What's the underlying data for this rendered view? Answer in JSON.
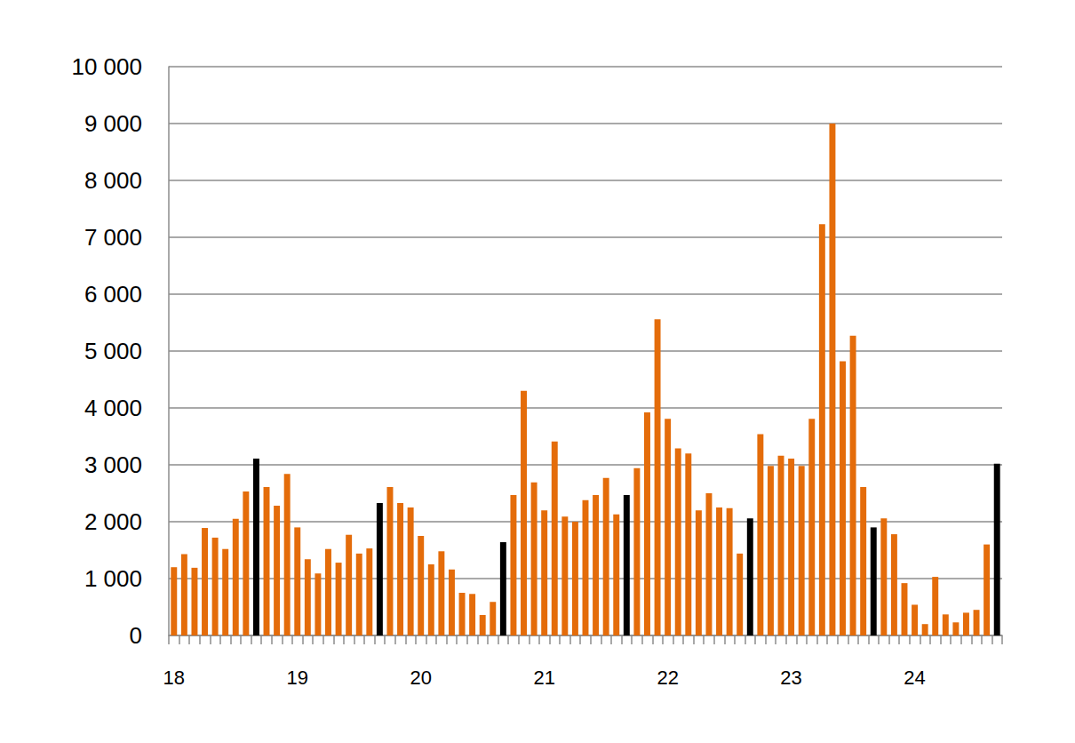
{
  "chart_data": {
    "type": "bar",
    "categories": [
      "18",
      null,
      null,
      null,
      null,
      null,
      null,
      null,
      null,
      null,
      null,
      null,
      "19",
      null,
      null,
      null,
      null,
      null,
      null,
      null,
      null,
      null,
      null,
      null,
      "20",
      null,
      null,
      null,
      null,
      null,
      null,
      null,
      null,
      null,
      null,
      null,
      "21",
      null,
      null,
      null,
      null,
      null,
      null,
      null,
      null,
      null,
      null,
      null,
      "22",
      null,
      null,
      null,
      null,
      null,
      null,
      null,
      null,
      null,
      null,
      null,
      "23",
      null,
      null,
      null,
      null,
      null,
      null,
      null,
      null,
      null,
      null,
      null,
      "24",
      null,
      null,
      null,
      null,
      null,
      null,
      null,
      null
    ],
    "values": [
      1200,
      1430,
      1190,
      1890,
      1720,
      1520,
      2050,
      2530,
      3110,
      2610,
      2280,
      2840,
      1900,
      1340,
      1090,
      1520,
      1280,
      1770,
      1440,
      1530,
      2330,
      2610,
      2330,
      2250,
      1750,
      1250,
      1480,
      1160,
      750,
      730,
      360,
      590,
      1640,
      2470,
      4300,
      2690,
      2200,
      3410,
      2090,
      2000,
      2380,
      2470,
      2770,
      2130,
      2470,
      2940,
      3920,
      5560,
      3810,
      3290,
      3200,
      2200,
      2500,
      2250,
      2240,
      1440,
      2060,
      3540,
      2980,
      3160,
      3110,
      2980,
      3810,
      7230,
      9000,
      4820,
      5270,
      2610,
      1900,
      2060,
      1780,
      920,
      540,
      200,
      1030,
      370,
      230,
      400,
      450,
      1600,
      3020
    ],
    "colors": [
      "#e46c0a",
      "#e46c0a",
      "#e46c0a",
      "#e46c0a",
      "#e46c0a",
      "#e46c0a",
      "#e46c0a",
      "#e46c0a",
      "#000000",
      "#e46c0a",
      "#e46c0a",
      "#e46c0a",
      "#e46c0a",
      "#e46c0a",
      "#e46c0a",
      "#e46c0a",
      "#e46c0a",
      "#e46c0a",
      "#e46c0a",
      "#e46c0a",
      "#000000",
      "#e46c0a",
      "#e46c0a",
      "#e46c0a",
      "#e46c0a",
      "#e46c0a",
      "#e46c0a",
      "#e46c0a",
      "#e46c0a",
      "#e46c0a",
      "#e46c0a",
      "#e46c0a",
      "#000000",
      "#e46c0a",
      "#e46c0a",
      "#e46c0a",
      "#e46c0a",
      "#e46c0a",
      "#e46c0a",
      "#e46c0a",
      "#e46c0a",
      "#e46c0a",
      "#e46c0a",
      "#e46c0a",
      "#000000",
      "#e46c0a",
      "#e46c0a",
      "#e46c0a",
      "#e46c0a",
      "#e46c0a",
      "#e46c0a",
      "#e46c0a",
      "#e46c0a",
      "#e46c0a",
      "#e46c0a",
      "#e46c0a",
      "#000000",
      "#e46c0a",
      "#e46c0a",
      "#e46c0a",
      "#e46c0a",
      "#e46c0a",
      "#e46c0a",
      "#e46c0a",
      "#e46c0a",
      "#e46c0a",
      "#e46c0a",
      "#e46c0a",
      "#000000",
      "#e46c0a",
      "#e46c0a",
      "#e46c0a",
      "#e46c0a",
      "#e46c0a",
      "#e46c0a",
      "#e46c0a",
      "#e46c0a",
      "#e46c0a",
      "#e46c0a",
      "#e46c0a",
      "#000000"
    ],
    "ylim": [
      0,
      10000
    ],
    "yticks": [
      0,
      {
        "value": 1000,
        "label": "1 000"
      },
      {
        "value": 2000,
        "label": "2 000"
      },
      {
        "value": 3000,
        "label": "3 000"
      },
      {
        "value": 4000,
        "label": "4 000"
      },
      {
        "value": 5000,
        "label": "5 000"
      },
      {
        "value": 6000,
        "label": "6 000"
      },
      {
        "value": 7000,
        "label": "7 000"
      },
      {
        "value": 8000,
        "label": "8 000"
      },
      {
        "value": 9000,
        "label": "9 000"
      },
      {
        "value": 10000,
        "label": "10 000"
      }
    ],
    "grid": true
  }
}
